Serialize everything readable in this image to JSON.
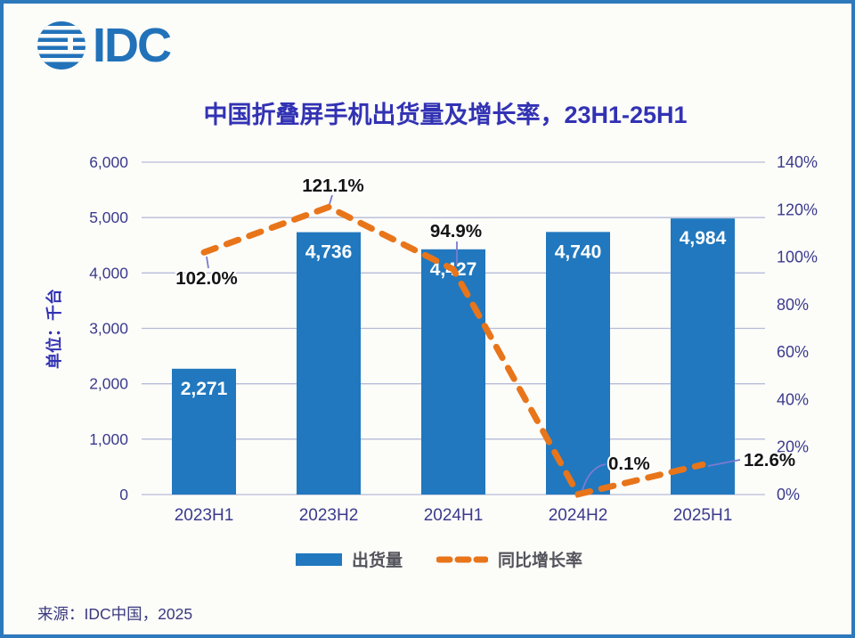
{
  "logo": {
    "text": "IDC"
  },
  "title": "中国折叠屏手机出货量及增长率，23H1-25H1",
  "y_axis_title": "单位：千台",
  "source": "来源：IDC中国，2025",
  "legend": {
    "bar_label": "出货量",
    "line_label": "同比增长率"
  },
  "chart_data": {
    "type": "bar",
    "subtype": "bar-line-combo",
    "title": "中国折叠屏手机出货量及增长率，23H1-25H1",
    "categories": [
      "2023H1",
      "2023H2",
      "2024H1",
      "2024H2",
      "2025H1"
    ],
    "series": [
      {
        "name": "出货量",
        "type": "bar",
        "axis": "left",
        "values": [
          2271,
          4736,
          4427,
          4740,
          4984
        ],
        "value_labels": [
          "2,271",
          "4,736",
          "4,427",
          "4,740",
          "4,984"
        ]
      },
      {
        "name": "同比增长率",
        "type": "line",
        "style": "dashed",
        "axis": "right",
        "values": [
          102.0,
          121.1,
          94.9,
          0.1,
          12.6
        ],
        "value_labels": [
          "102.0%",
          "121.1%",
          "94.9%",
          "0.1%",
          "12.6%"
        ]
      }
    ],
    "left_axis": {
      "label": "单位：千台",
      "min": 0,
      "max": 6000,
      "step": 1000,
      "tick_labels": [
        "0",
        "1,000",
        "2,000",
        "3,000",
        "4,000",
        "5,000",
        "6,000"
      ]
    },
    "right_axis": {
      "min": 0,
      "max": 140,
      "step": 20,
      "tick_labels": [
        "0%",
        "20%",
        "40%",
        "60%",
        "80%",
        "100%",
        "120%",
        "140%"
      ]
    },
    "grid": true,
    "legend_position": "bottom"
  },
  "colors": {
    "frame_border": "#2E78BC",
    "background": "#FCFCF9",
    "bar": "#2178BE",
    "line": "#E8751A",
    "title_text": "#3232B4",
    "axis_text": "#3B3B8E",
    "legend_text": "#53535B",
    "logo": "#2272B9",
    "source_text": "#39397E",
    "gridline": "#B6BCD8",
    "connector": "#7B7BD2",
    "growth_label_text": "#141414",
    "bar_value_text": "#FFFFFF"
  }
}
